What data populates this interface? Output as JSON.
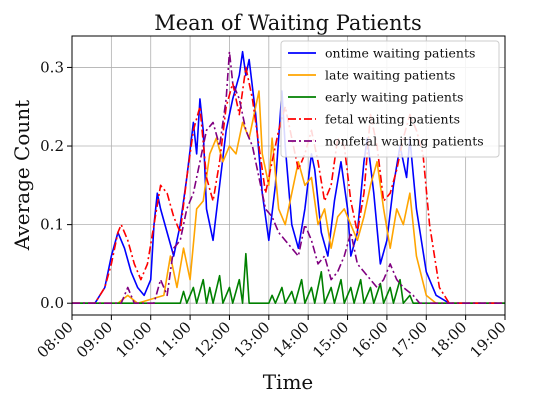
{
  "chart_data": {
    "type": "line",
    "title": "Mean of Waiting Patients",
    "xlabel": "Time",
    "ylabel": "Average Count",
    "x_ticks": [
      "08:00",
      "09:00",
      "10:00",
      "11:00",
      "12:00",
      "13:00",
      "14:00",
      "15:00",
      "16:00",
      "17:00",
      "18:00",
      "19:00"
    ],
    "y_ticks": [
      "0.0",
      "0.1",
      "0.2",
      "0.3"
    ],
    "xlim": [
      "08:00",
      "19:00"
    ],
    "ylim": [
      -0.015,
      0.34
    ],
    "grid": true,
    "legend_position": "top-right",
    "series": [
      {
        "name": "ontime waiting patients",
        "color": "#0000ff",
        "dash": "solid",
        "points": [
          [
            "08:00",
            0
          ],
          [
            "08:35",
            0
          ],
          [
            "08:50",
            0.02
          ],
          [
            "09:00",
            0.06
          ],
          [
            "09:10",
            0.09
          ],
          [
            "09:20",
            0.07
          ],
          [
            "09:30",
            0.04
          ],
          [
            "09:40",
            0.02
          ],
          [
            "09:50",
            0.01
          ],
          [
            "10:00",
            0.03
          ],
          [
            "10:05",
            0.1
          ],
          [
            "10:10",
            0.14
          ],
          [
            "10:15",
            0.12
          ],
          [
            "10:25",
            0.09
          ],
          [
            "10:35",
            0.06
          ],
          [
            "10:45",
            0.1
          ],
          [
            "10:55",
            0.16
          ],
          [
            "11:05",
            0.23
          ],
          [
            "11:10",
            0.19
          ],
          [
            "11:15",
            0.26
          ],
          [
            "11:20",
            0.22
          ],
          [
            "11:25",
            0.12
          ],
          [
            "11:35",
            0.08
          ],
          [
            "11:45",
            0.15
          ],
          [
            "11:55",
            0.22
          ],
          [
            "12:05",
            0.26
          ],
          [
            "12:15",
            0.29
          ],
          [
            "12:20",
            0.32
          ],
          [
            "12:25",
            0.29
          ],
          [
            "12:30",
            0.31
          ],
          [
            "12:40",
            0.24
          ],
          [
            "12:50",
            0.14
          ],
          [
            "13:00",
            0.08
          ],
          [
            "13:10",
            0.15
          ],
          [
            "13:15",
            0.21
          ],
          [
            "13:20",
            0.27
          ],
          [
            "13:25",
            0.2
          ],
          [
            "13:35",
            0.1
          ],
          [
            "13:45",
            0.07
          ],
          [
            "13:55",
            0.12
          ],
          [
            "14:05",
            0.19
          ],
          [
            "14:10",
            0.17
          ],
          [
            "14:20",
            0.09
          ],
          [
            "14:30",
            0.06
          ],
          [
            "14:40",
            0.13
          ],
          [
            "14:50",
            0.18
          ],
          [
            "15:00",
            0.12
          ],
          [
            "15:05",
            0.06
          ],
          [
            "15:15",
            0.09
          ],
          [
            "15:25",
            0.18
          ],
          [
            "15:30",
            0.21
          ],
          [
            "15:40",
            0.14
          ],
          [
            "15:50",
            0.05
          ],
          [
            "16:00",
            0.08
          ],
          [
            "16:10",
            0.15
          ],
          [
            "16:20",
            0.2
          ],
          [
            "16:30",
            0.16
          ],
          [
            "16:35",
            0.21
          ],
          [
            "16:45",
            0.12
          ],
          [
            "17:00",
            0.04
          ],
          [
            "17:15",
            0.01
          ],
          [
            "17:35",
            0
          ],
          [
            "19:00",
            0
          ]
        ]
      },
      {
        "name": "late waiting patients",
        "color": "#ffa500",
        "dash": "solid",
        "points": [
          [
            "08:00",
            0
          ],
          [
            "09:10",
            0
          ],
          [
            "09:25",
            0.01
          ],
          [
            "09:40",
            0
          ],
          [
            "10:20",
            0.01
          ],
          [
            "10:30",
            0.06
          ],
          [
            "10:40",
            0.02
          ],
          [
            "10:50",
            0.07
          ],
          [
            "11:00",
            0.03
          ],
          [
            "11:10",
            0.12
          ],
          [
            "11:20",
            0.13
          ],
          [
            "11:30",
            0.19
          ],
          [
            "11:40",
            0.21
          ],
          [
            "11:50",
            0.18
          ],
          [
            "12:00",
            0.2
          ],
          [
            "12:10",
            0.19
          ],
          [
            "12:20",
            0.23
          ],
          [
            "12:30",
            0.21
          ],
          [
            "12:40",
            0.25
          ],
          [
            "12:45",
            0.27
          ],
          [
            "12:50",
            0.19
          ],
          [
            "13:00",
            0.15
          ],
          [
            "13:05",
            0.21
          ],
          [
            "13:15",
            0.12
          ],
          [
            "13:25",
            0.1
          ],
          [
            "13:35",
            0.14
          ],
          [
            "13:45",
            0.18
          ],
          [
            "13:55",
            0.15
          ],
          [
            "14:05",
            0.16
          ],
          [
            "14:15",
            0.1
          ],
          [
            "14:25",
            0.12
          ],
          [
            "14:35",
            0.07
          ],
          [
            "14:45",
            0.11
          ],
          [
            "14:55",
            0.12
          ],
          [
            "15:05",
            0.1
          ],
          [
            "15:15",
            0.08
          ],
          [
            "15:25",
            0.11
          ],
          [
            "15:35",
            0.15
          ],
          [
            "15:45",
            0.18
          ],
          [
            "15:55",
            0.12
          ],
          [
            "16:05",
            0.07
          ],
          [
            "16:15",
            0.12
          ],
          [
            "16:25",
            0.1
          ],
          [
            "16:35",
            0.14
          ],
          [
            "16:45",
            0.06
          ],
          [
            "17:00",
            0.01
          ],
          [
            "17:15",
            0
          ],
          [
            "19:00",
            0
          ]
        ]
      },
      {
        "name": "early waiting patients",
        "color": "#008000",
        "dash": "solid",
        "points": [
          [
            "08:00",
            0
          ],
          [
            "10:45",
            0
          ],
          [
            "10:50",
            0.015
          ],
          [
            "10:55",
            0
          ],
          [
            "11:05",
            0.02
          ],
          [
            "11:10",
            0
          ],
          [
            "11:20",
            0.03
          ],
          [
            "11:25",
            0
          ],
          [
            "11:30",
            0.02
          ],
          [
            "11:35",
            0
          ],
          [
            "11:45",
            0.035
          ],
          [
            "11:50",
            0
          ],
          [
            "12:00",
            0.02
          ],
          [
            "12:05",
            0
          ],
          [
            "12:15",
            0.03
          ],
          [
            "12:20",
            0
          ],
          [
            "12:25",
            0.063
          ],
          [
            "12:30",
            0
          ],
          [
            "13:00",
            0
          ],
          [
            "13:05",
            0.01
          ],
          [
            "13:10",
            0
          ],
          [
            "13:20",
            0.02
          ],
          [
            "13:25",
            0
          ],
          [
            "13:35",
            0.015
          ],
          [
            "13:40",
            0
          ],
          [
            "13:50",
            0.03
          ],
          [
            "13:55",
            0
          ],
          [
            "14:05",
            0.02
          ],
          [
            "14:10",
            0
          ],
          [
            "14:20",
            0.04
          ],
          [
            "14:25",
            0
          ],
          [
            "14:35",
            0.02
          ],
          [
            "14:40",
            0
          ],
          [
            "14:50",
            0.03
          ],
          [
            "14:55",
            0
          ],
          [
            "15:05",
            0.02
          ],
          [
            "15:10",
            0
          ],
          [
            "15:20",
            0.03
          ],
          [
            "15:25",
            0
          ],
          [
            "15:35",
            0.02
          ],
          [
            "15:40",
            0
          ],
          [
            "15:50",
            0.025
          ],
          [
            "15:55",
            0
          ],
          [
            "16:05",
            0.02
          ],
          [
            "16:10",
            0
          ],
          [
            "16:20",
            0.03
          ],
          [
            "16:25",
            0
          ],
          [
            "16:35",
            0.01
          ],
          [
            "16:40",
            0
          ],
          [
            "19:00",
            0
          ]
        ]
      },
      {
        "name": "fetal waiting patients",
        "color": "#ff0000",
        "dash": "dashdot",
        "points": [
          [
            "08:00",
            0
          ],
          [
            "08:35",
            0
          ],
          [
            "08:50",
            0.02
          ],
          [
            "09:00",
            0.05
          ],
          [
            "09:10",
            0.09
          ],
          [
            "09:15",
            0.1
          ],
          [
            "09:25",
            0.08
          ],
          [
            "09:35",
            0.05
          ],
          [
            "09:45",
            0.03
          ],
          [
            "09:55",
            0.05
          ],
          [
            "10:05",
            0.1
          ],
          [
            "10:15",
            0.15
          ],
          [
            "10:25",
            0.14
          ],
          [
            "10:35",
            0.11
          ],
          [
            "10:45",
            0.09
          ],
          [
            "10:55",
            0.16
          ],
          [
            "11:05",
            0.22
          ],
          [
            "11:15",
            0.25
          ],
          [
            "11:25",
            0.16
          ],
          [
            "11:35",
            0.13
          ],
          [
            "11:45",
            0.18
          ],
          [
            "11:55",
            0.25
          ],
          [
            "12:05",
            0.28
          ],
          [
            "12:15",
            0.24
          ],
          [
            "12:25",
            0.3
          ],
          [
            "12:35",
            0.26
          ],
          [
            "12:45",
            0.2
          ],
          [
            "12:55",
            0.14
          ],
          [
            "13:05",
            0.18
          ],
          [
            "13:15",
            0.22
          ],
          [
            "13:25",
            0.25
          ],
          [
            "13:35",
            0.21
          ],
          [
            "13:45",
            0.17
          ],
          [
            "13:55",
            0.19
          ],
          [
            "14:05",
            0.22
          ],
          [
            "14:15",
            0.18
          ],
          [
            "14:25",
            0.13
          ],
          [
            "14:35",
            0.15
          ],
          [
            "14:45",
            0.21
          ],
          [
            "14:55",
            0.2
          ],
          [
            "15:05",
            0.13
          ],
          [
            "15:15",
            0.09
          ],
          [
            "15:25",
            0.14
          ],
          [
            "15:35",
            0.24
          ],
          [
            "15:45",
            0.2
          ],
          [
            "15:55",
            0.13
          ],
          [
            "16:05",
            0.14
          ],
          [
            "16:15",
            0.17
          ],
          [
            "16:25",
            0.21
          ],
          [
            "16:35",
            0.24
          ],
          [
            "16:45",
            0.22
          ],
          [
            "16:55",
            0.19
          ],
          [
            "17:05",
            0.1
          ],
          [
            "17:20",
            0.02
          ],
          [
            "17:35",
            0
          ],
          [
            "19:00",
            0
          ]
        ]
      },
      {
        "name": "nonfetal waiting patients",
        "color": "#800080",
        "dash": "dashdot",
        "points": [
          [
            "08:00",
            0
          ],
          [
            "09:15",
            0
          ],
          [
            "09:25",
            0.02
          ],
          [
            "09:35",
            0
          ],
          [
            "10:05",
            0
          ],
          [
            "10:15",
            0.03
          ],
          [
            "10:25",
            0.01
          ],
          [
            "10:35",
            0.07
          ],
          [
            "10:45",
            0.08
          ],
          [
            "10:55",
            0.12
          ],
          [
            "11:05",
            0.14
          ],
          [
            "11:15",
            0.18
          ],
          [
            "11:25",
            0.22
          ],
          [
            "11:35",
            0.23
          ],
          [
            "11:45",
            0.2
          ],
          [
            "11:55",
            0.26
          ],
          [
            "12:00",
            0.32
          ],
          [
            "12:05",
            0.28
          ],
          [
            "12:15",
            0.26
          ],
          [
            "12:25",
            0.22
          ],
          [
            "12:35",
            0.2
          ],
          [
            "12:45",
            0.16
          ],
          [
            "12:55",
            0.12
          ],
          [
            "13:05",
            0.11
          ],
          [
            "13:15",
            0.09
          ],
          [
            "13:25",
            0.08
          ],
          [
            "13:35",
            0.07
          ],
          [
            "13:45",
            0.06
          ],
          [
            "13:55",
            0.1
          ],
          [
            "14:05",
            0.08
          ],
          [
            "14:15",
            0.05
          ],
          [
            "14:25",
            0.06
          ],
          [
            "14:35",
            0.03
          ],
          [
            "14:45",
            0.04
          ],
          [
            "14:55",
            0.06
          ],
          [
            "15:05",
            0.09
          ],
          [
            "15:15",
            0.05
          ],
          [
            "15:25",
            0.04
          ],
          [
            "15:35",
            0.03
          ],
          [
            "15:45",
            0.02
          ],
          [
            "15:55",
            0.03
          ],
          [
            "16:05",
            0.05
          ],
          [
            "16:15",
            0.03
          ],
          [
            "16:25",
            0.02
          ],
          [
            "16:40",
            0.01
          ],
          [
            "16:50",
            0
          ],
          [
            "19:00",
            0
          ]
        ]
      }
    ]
  }
}
